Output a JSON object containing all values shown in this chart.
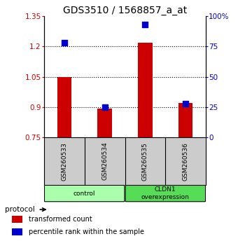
{
  "title": "GDS3510 / 1568857_a_at",
  "samples": [
    "GSM260533",
    "GSM260534",
    "GSM260535",
    "GSM260536"
  ],
  "bar_values": [
    1.05,
    0.895,
    1.22,
    0.92
  ],
  "percentile_values": [
    78,
    25,
    93,
    28
  ],
  "bar_color": "#cc0000",
  "dot_color": "#0000cc",
  "ylim_left": [
    0.75,
    1.35
  ],
  "ylim_right": [
    0,
    100
  ],
  "yticks_left": [
    0.75,
    0.9,
    1.05,
    1.2,
    1.35
  ],
  "ytick_labels_left": [
    "0.75",
    "0.9",
    "1.05",
    "1.2",
    "1.35"
  ],
  "yticks_right": [
    0,
    25,
    50,
    75,
    100
  ],
  "ytick_labels_right": [
    "0",
    "25",
    "50",
    "75",
    "100%"
  ],
  "hlines": [
    0.9,
    1.05,
    1.2
  ],
  "groups": [
    {
      "label": "control",
      "samples": [
        0,
        1
      ],
      "color": "#aaffaa"
    },
    {
      "label": "CLDN1\noverexpression",
      "samples": [
        2,
        3
      ],
      "color": "#55dd55"
    }
  ],
  "protocol_label": "protocol",
  "legend_items": [
    {
      "color": "#cc0000",
      "label": "transformed count"
    },
    {
      "color": "#0000cc",
      "label": "percentile rank within the sample"
    }
  ],
  "bar_width": 0.35,
  "dot_size": 35,
  "ax_bg_color": "#ffffff",
  "sample_area_bg": "#cccccc",
  "left_tick_color": "#cc0000",
  "right_tick_color": "#0000cc",
  "title_fontsize": 10,
  "axis_fontsize": 7.5,
  "label_fontsize": 8
}
